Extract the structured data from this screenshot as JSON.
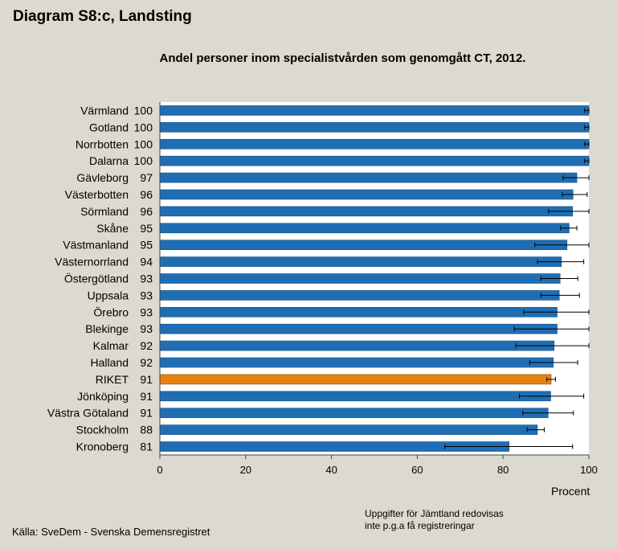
{
  "chart_data": {
    "type": "bar",
    "orientation": "horizontal",
    "title": "Diagram S8:c, Landsting",
    "subtitle": "Andel personer inom specialistvården som genomgått CT, 2012.",
    "xlabel": "Procent",
    "xlim": [
      0,
      100
    ],
    "xticks": [
      "0",
      "20",
      "40",
      "60",
      "80",
      "100"
    ],
    "highlight_category": "RIKET",
    "colors": {
      "default": "#1f6eb4",
      "highlight": "#e8820f",
      "error_bar": "#000000"
    },
    "categories": [
      "Värmland",
      "Gotland",
      "Norrbotten",
      "Dalarna",
      "Gävleborg",
      "Västerbotten",
      "Sörmland",
      "Skåne",
      "Västmanland",
      "Västernorrland",
      "Östergötland",
      "Uppsala",
      "Örebro",
      "Blekinge",
      "Kalmar",
      "Halland",
      "RIKET",
      "Jönköping",
      "Västra Götaland",
      "Stockholm",
      "Kronoberg"
    ],
    "value_labels": [
      "100",
      "100",
      "100",
      "100",
      "97",
      "96",
      "96",
      "95",
      "95",
      "94",
      "93",
      "93",
      "93",
      "93",
      "92",
      "92",
      "91",
      "91",
      "91",
      "88",
      "81"
    ],
    "values": [
      100,
      100,
      100,
      100,
      97.2,
      96.3,
      96.2,
      95.4,
      94.9,
      93.6,
      93.3,
      93.1,
      92.6,
      92.6,
      91.9,
      91.7,
      91.2,
      91.1,
      90.5,
      88.0,
      81.4
    ],
    "ci_low": [
      99,
      99,
      99,
      99,
      94,
      93.8,
      90.6,
      93.4,
      87.4,
      88,
      88.8,
      88.8,
      84.8,
      82.6,
      83,
      86.2,
      90.2,
      83.8,
      84.6,
      85.6,
      66.4
    ],
    "ci_high": [
      100,
      100,
      100,
      100,
      100,
      99.6,
      100,
      97.2,
      100,
      98.8,
      97.4,
      97.8,
      100,
      100,
      100,
      97.4,
      92.2,
      98.8,
      96.4,
      89.6,
      96.2
    ]
  },
  "xlabel": "Procent",
  "note": {
    "line1": "Uppgifter för Jämtland redovisas",
    "line2": "inte p.g.a få registreringar"
  },
  "source": "Källa: SveDem - Svenska Demensregistret"
}
